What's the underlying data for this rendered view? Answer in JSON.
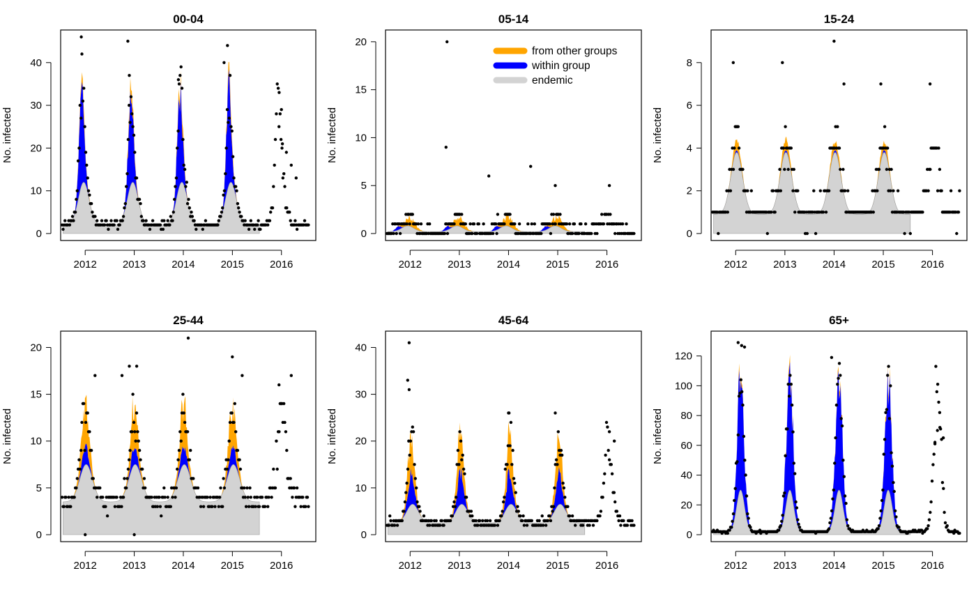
{
  "colors": {
    "other": "#FFA500",
    "within": "#0000FF",
    "endemic": "#D3D3D3",
    "points": "#000000",
    "frame": "#000000"
  },
  "legend": {
    "placement": "top-right",
    "entries": [
      {
        "label": "from other groups",
        "color": "#FFA500"
      },
      {
        "label": "within group",
        "color": "#0000FF"
      },
      {
        "label": "endemic",
        "color": "#D3D3D3"
      }
    ]
  },
  "chart_data": [
    {
      "type": "area",
      "title": "00-04",
      "ylabel": "No. infected",
      "xlabel": "",
      "xticks": [
        2012,
        2013,
        2014,
        2015,
        2016
      ],
      "xlim": [
        2011.5,
        2016.7
      ],
      "yticks": [
        0,
        10,
        20,
        30,
        40
      ],
      "ylim": [
        0,
        46
      ],
      "fit_range": [
        2011.55,
        2015.55
      ],
      "seasonal": {
        "base": 2,
        "amp": 10,
        "peak": 0.97,
        "width": 0.11
      },
      "within": {
        "amp": 22,
        "peak": 0.93,
        "width": 0.05
      },
      "other": {
        "amp": 2.5,
        "peak": 0.95,
        "width": 0.07
      },
      "outliers": [
        [
          2011.92,
          46
        ],
        [
          2012.87,
          45
        ],
        [
          2012.9,
          37
        ],
        [
          2013.9,
          36
        ],
        [
          2014.9,
          44
        ],
        [
          2014.83,
          40
        ],
        [
          2016.0,
          29
        ],
        [
          2015.95,
          25
        ],
        [
          2016.02,
          21
        ],
        [
          2016.1,
          19
        ],
        [
          2016.2,
          16
        ],
        [
          2016.3,
          13
        ]
      ]
    },
    {
      "type": "area",
      "title": "05-14",
      "ylabel": "No. infected",
      "xlabel": "",
      "xticks": [
        2012,
        2013,
        2014,
        2015,
        2016
      ],
      "xlim": [
        2011.5,
        2016.7
      ],
      "yticks": [
        0,
        5,
        10,
        15,
        20
      ],
      "ylim": [
        0,
        20.5
      ],
      "fit_range": [
        2011.55,
        2015.55
      ],
      "seasonal": {
        "base": 0.2,
        "amp": 0.6,
        "peak": 0.95,
        "width": 0.12
      },
      "within": {
        "amp": 0.4,
        "peak": 0.75,
        "width": 0.05
      },
      "other": {
        "amp": 1.0,
        "peak": 0.0,
        "width": 0.1
      },
      "outliers": [
        [
          2012.75,
          20
        ],
        [
          2012.73,
          9
        ],
        [
          2013.6,
          6
        ],
        [
          2014.45,
          7
        ],
        [
          2014.95,
          5
        ],
        [
          2016.05,
          5
        ]
      ]
    },
    {
      "type": "area",
      "title": "15-24",
      "ylabel": "No. infected",
      "xlabel": "",
      "xticks": [
        2012,
        2013,
        2014,
        2015,
        2016
      ],
      "xlim": [
        2011.5,
        2016.7
      ],
      "yticks": [
        0,
        2,
        4,
        6,
        8
      ],
      "ylim": [
        0,
        9.2
      ],
      "fit_range": [
        2011.55,
        2015.55
      ],
      "seasonal": {
        "base": 0.9,
        "amp": 2.9,
        "peak": 0.02,
        "width": 0.12
      },
      "within": {
        "amp": 0.1,
        "peak": 0.02,
        "width": 0.05
      },
      "other": {
        "amp": 0.5,
        "peak": 0.02,
        "width": 0.08
      },
      "outliers": [
        [
          2011.95,
          8
        ],
        [
          2012.95,
          8
        ],
        [
          2014.0,
          9
        ],
        [
          2014.95,
          7
        ],
        [
          2015.95,
          7
        ],
        [
          2014.2,
          7
        ]
      ]
    },
    {
      "type": "area",
      "title": "25-44",
      "ylabel": "No. infected",
      "xlabel": "",
      "xticks": [
        2012,
        2013,
        2014,
        2015,
        2016
      ],
      "xlim": [
        2011.5,
        2016.7
      ],
      "yticks": [
        0,
        5,
        10,
        15,
        20
      ],
      "ylim": [
        0,
        21
      ],
      "fit_range": [
        2011.55,
        2015.55
      ],
      "seasonal": {
        "base": 3.5,
        "amp": 4.0,
        "peak": 0.02,
        "width": 0.13
      },
      "within": {
        "amp": 2.0,
        "peak": 0.0,
        "width": 0.06
      },
      "other": {
        "amp": 4.5,
        "peak": 0.0,
        "width": 0.08
      },
      "outliers": [
        [
          2014.1,
          21
        ],
        [
          2015.0,
          19
        ],
        [
          2012.9,
          18
        ],
        [
          2013.05,
          18
        ],
        [
          2012.2,
          17
        ],
        [
          2015.2,
          17
        ],
        [
          2016.2,
          17
        ],
        [
          2015.95,
          16
        ],
        [
          2012.75,
          17
        ],
        [
          2012.0,
          0
        ],
        [
          2013.0,
          0
        ]
      ]
    },
    {
      "type": "area",
      "title": "45-64",
      "ylabel": "No. infected",
      "xlabel": "",
      "xticks": [
        2012,
        2013,
        2014,
        2015,
        2016
      ],
      "xlim": [
        2011.5,
        2016.7
      ],
      "yticks": [
        0,
        10,
        20,
        30,
        40
      ],
      "ylim": [
        0,
        42
      ],
      "fit_range": [
        2011.55,
        2015.55
      ],
      "seasonal": {
        "base": 2.5,
        "amp": 4.0,
        "peak": 0.05,
        "width": 0.12
      },
      "within": {
        "amp": 7.0,
        "peak": 0.02,
        "width": 0.06
      },
      "other": {
        "amp": 9.0,
        "peak": 0.02,
        "width": 0.07
      },
      "outliers": [
        [
          2011.98,
          41
        ],
        [
          2011.95,
          33
        ],
        [
          2011.98,
          31
        ],
        [
          2014.0,
          26
        ],
        [
          2014.95,
          26
        ],
        [
          2016.05,
          22
        ],
        [
          2016.15,
          20
        ]
      ]
    },
    {
      "type": "area",
      "title": "65+",
      "ylabel": "No. infected",
      "xlabel": "",
      "xticks": [
        2012,
        2013,
        2014,
        2015,
        2016
      ],
      "xlim": [
        2011.5,
        2016.7
      ],
      "yticks": [
        0,
        20,
        40,
        60,
        80,
        100,
        120
      ],
      "ylim": [
        0,
        132
      ],
      "fit_range": [
        2011.55,
        2015.55
      ],
      "seasonal": {
        "base": 2,
        "amp": 28,
        "peak": 0.1,
        "width": 0.08
      },
      "within": {
        "amp": 75,
        "peak": 0.1,
        "width": 0.07
      },
      "other": {
        "amp": 4,
        "peak": 0.1,
        "width": 0.06
      },
      "outliers": [
        [
          2012.05,
          129
        ],
        [
          2012.12,
          127
        ],
        [
          2012.18,
          126
        ],
        [
          2013.95,
          119
        ],
        [
          2016.1,
          70
        ],
        [
          2016.15,
          72
        ],
        [
          2016.05,
          62
        ],
        [
          2016.22,
          65
        ]
      ]
    }
  ]
}
